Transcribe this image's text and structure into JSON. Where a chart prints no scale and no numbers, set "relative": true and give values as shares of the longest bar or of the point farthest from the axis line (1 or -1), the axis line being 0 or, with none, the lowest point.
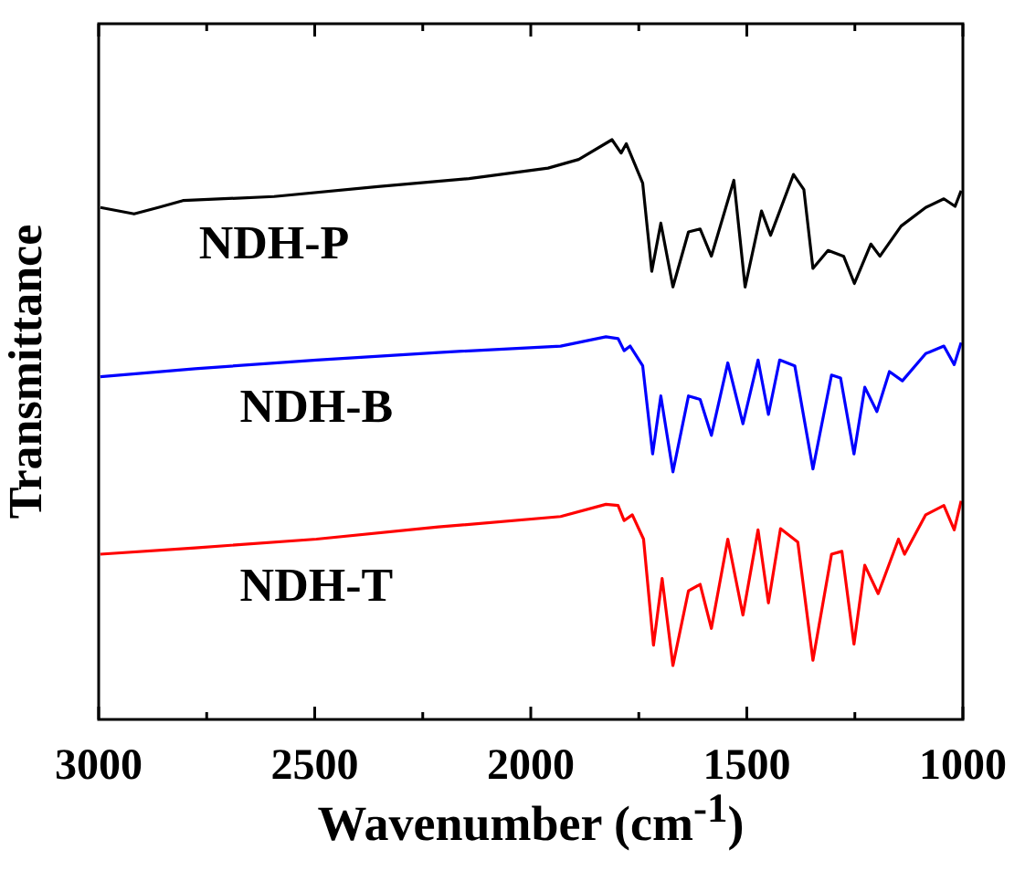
{
  "chart_data": {
    "type": "line",
    "xlabel": "Wavenumber (cm$^{-1}$)",
    "ylabel": "Transmittance",
    "relative": true,
    "xlim": [
      3000,
      1000
    ],
    "xticks": [
      3000,
      {
        "value": 2750,
        "label": null
      },
      2500,
      {
        "value": 2250,
        "label": null
      },
      2000,
      {
        "value": 1750,
        "label": null
      },
      1500,
      {
        "value": 1250,
        "label": null
      },
      1000
    ],
    "grid": false,
    "legend": false,
    "marker": "none",
    "line_style": "solid",
    "series": [
      {
        "name": "NDH-P",
        "color": "#000000",
        "x": [
          2996,
          2918,
          2862,
          2805,
          2594,
          2354,
          2143,
          1960,
          1889,
          1812,
          1791,
          1779,
          1741,
          1720,
          1699,
          1671,
          1635,
          1608,
          1582,
          1530,
          1504,
          1466,
          1445,
          1392,
          1368,
          1347,
          1312,
          1276,
          1251,
          1213,
          1192,
          1143,
          1086,
          1044,
          1018,
          1004
        ],
        "values": [
          0.883,
          0.872,
          0.883,
          0.895,
          0.902,
          0.919,
          0.933,
          0.951,
          0.966,
          1,
          0.977,
          0.993,
          0.925,
          0.773,
          0.856,
          0.746,
          0.841,
          0.846,
          0.799,
          0.93,
          0.746,
          0.877,
          0.835,
          0.94,
          0.914,
          0.778,
          0.809,
          0.799,
          0.752,
          0.82,
          0.799,
          0.851,
          0.883,
          0.898,
          0.885,
          0.912
        ]
      },
      {
        "name": "NDH-B",
        "color": "#0000ff",
        "x": [
          2996,
          2777,
          2496,
          2214,
          1931,
          1826,
          1798,
          1784,
          1770,
          1741,
          1718,
          1699,
          1671,
          1635,
          1608,
          1582,
          1544,
          1509,
          1474,
          1450,
          1424,
          1389,
          1347,
          1304,
          1283,
          1252,
          1227,
          1199,
          1170,
          1140,
          1086,
          1044,
          1020,
          1004
        ],
        "values": [
          0.591,
          0.605,
          0.62,
          0.633,
          0.644,
          0.66,
          0.657,
          0.636,
          0.644,
          0.61,
          0.458,
          0.558,
          0.427,
          0.558,
          0.552,
          0.49,
          0.615,
          0.51,
          0.62,
          0.526,
          0.62,
          0.61,
          0.432,
          0.594,
          0.589,
          0.458,
          0.573,
          0.531,
          0.6,
          0.584,
          0.631,
          0.644,
          0.612,
          0.65
        ]
      },
      {
        "name": "NDH-T",
        "color": "#ff0000",
        "x": [
          2996,
          2777,
          2496,
          2214,
          1931,
          1826,
          1798,
          1784,
          1765,
          1739,
          1716,
          1696,
          1671,
          1635,
          1608,
          1582,
          1544,
          1509,
          1474,
          1450,
          1422,
          1382,
          1347,
          1304,
          1280,
          1252,
          1227,
          1196,
          1149,
          1135,
          1086,
          1044,
          1020,
          1004
        ],
        "values": [
          0.285,
          0.296,
          0.311,
          0.332,
          0.35,
          0.371,
          0.369,
          0.343,
          0.353,
          0.311,
          0.128,
          0.243,
          0.093,
          0.222,
          0.233,
          0.157,
          0.311,
          0.18,
          0.327,
          0.201,
          0.329,
          0.306,
          0.102,
          0.285,
          0.29,
          0.13,
          0.266,
          0.217,
          0.311,
          0.285,
          0.353,
          0.369,
          0.327,
          0.377
        ]
      }
    ]
  }
}
